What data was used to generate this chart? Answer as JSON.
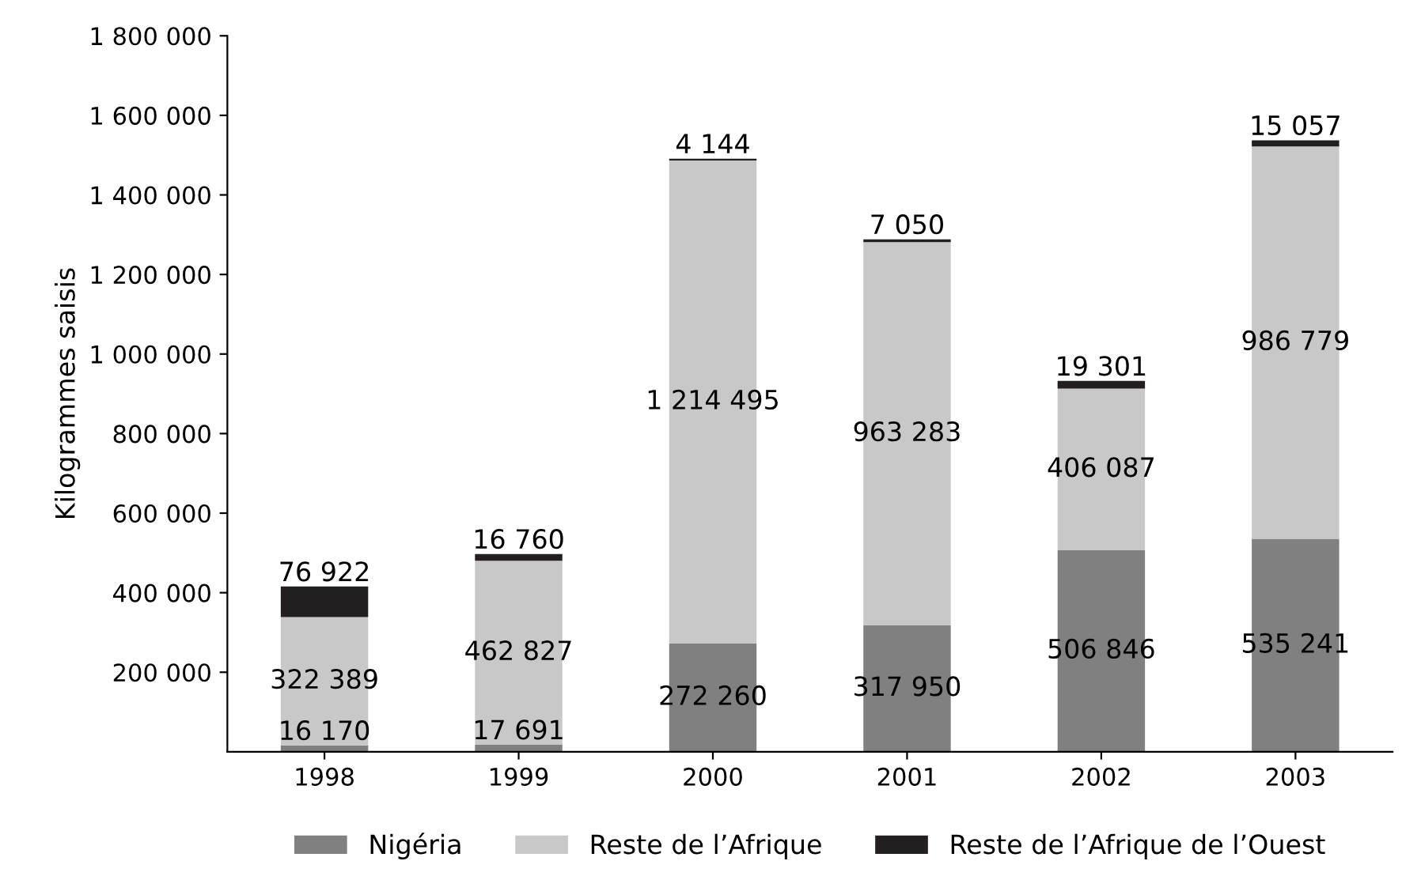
{
  "chart_data": {
    "type": "bar",
    "stacked": true,
    "ylabel": "Kilogrammes saisis",
    "categories": [
      "1998",
      "1999",
      "2000",
      "2001",
      "2002",
      "2003"
    ],
    "series": [
      {
        "name": "Nigéria",
        "color": "#808080",
        "values": [
          16170,
          17691,
          272260,
          317950,
          506846,
          535241
        ]
      },
      {
        "name": "Reste de l’Afrique",
        "color": "#c8c8c8",
        "values": [
          322389,
          462827,
          1214495,
          963283,
          406087,
          986779
        ]
      },
      {
        "name": "Reste de l’Afrique de l’Ouest",
        "color": "#231f20",
        "values": [
          76922,
          16760,
          4144,
          7050,
          19301,
          15057
        ]
      }
    ],
    "ylim": [
      0,
      1800000
    ],
    "yticks": [
      {
        "value": 200000,
        "label": "200 000"
      },
      {
        "value": 400000,
        "label": "400 000"
      },
      {
        "value": 600000,
        "label": "600 000"
      },
      {
        "value": 800000,
        "label": "800 000"
      },
      {
        "value": 1000000,
        "label": "1 000 000"
      },
      {
        "value": 1200000,
        "label": "1 200 000"
      },
      {
        "value": 1400000,
        "label": "1 400 000"
      },
      {
        "value": 1600000,
        "label": "1 600 000"
      },
      {
        "value": 1800000,
        "label": "1 800 000"
      }
    ],
    "data_labels": true,
    "grid": false,
    "legend": "bottom"
  }
}
